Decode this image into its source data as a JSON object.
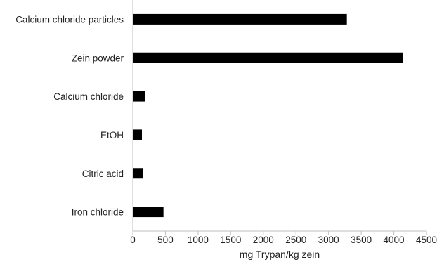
{
  "chart_data": {
    "type": "bar",
    "orientation": "horizontal",
    "categories": [
      "Calcium chloride particles",
      "Zein powder",
      "Calcium chloride",
      "EtOH",
      "Citric acid",
      "Iron chloride"
    ],
    "values": [
      3280,
      4140,
      190,
      140,
      155,
      470
    ],
    "xlabel": "mg Trypan/kg zein",
    "xlim": [
      0,
      4500
    ],
    "xticks": [
      0,
      500,
      1000,
      1500,
      2000,
      2500,
      3000,
      3500,
      4000,
      4500
    ],
    "grid": false,
    "bar_color": "#000000",
    "legend": "none"
  }
}
